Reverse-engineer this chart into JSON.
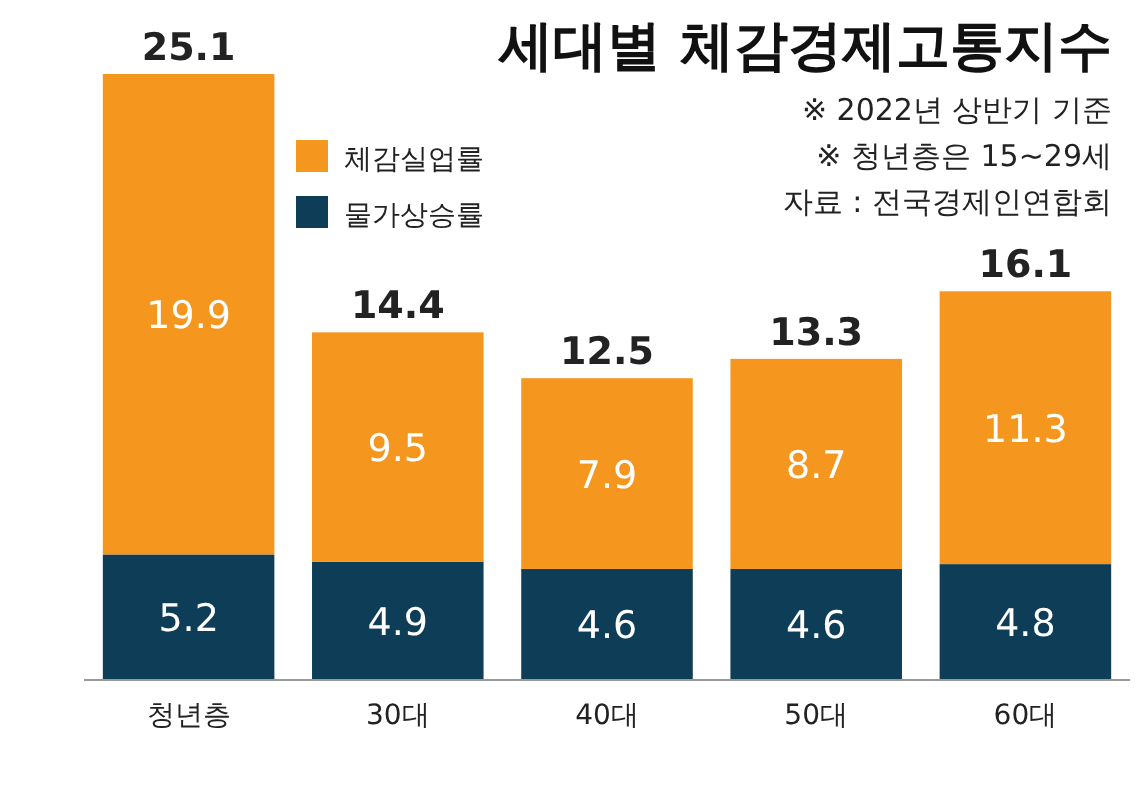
{
  "chart_data": {
    "type": "bar",
    "title": "세대별 체감경제고통지수",
    "stacked": true,
    "data_labels": true,
    "legend": "top left",
    "categories": [
      "청년층",
      "30대",
      "40대",
      "50대",
      "60대"
    ],
    "series": [
      {
        "name": "물가상승률",
        "color": "#0e3d57",
        "values": [
          5.2,
          4.9,
          4.6,
          4.6,
          4.8
        ]
      },
      {
        "name": "체감실업률",
        "color": "#f5961e",
        "values": [
          19.9,
          9.5,
          7.9,
          8.7,
          11.3
        ]
      }
    ],
    "totals": [
      "25.1",
      "14.4",
      "12.5",
      "13.3",
      "16.1"
    ],
    "annotations": [
      "※ 2022년 상반기 기준",
      "※ 청년층은 15~29세",
      "자료 : 전국경제인연합회"
    ]
  }
}
